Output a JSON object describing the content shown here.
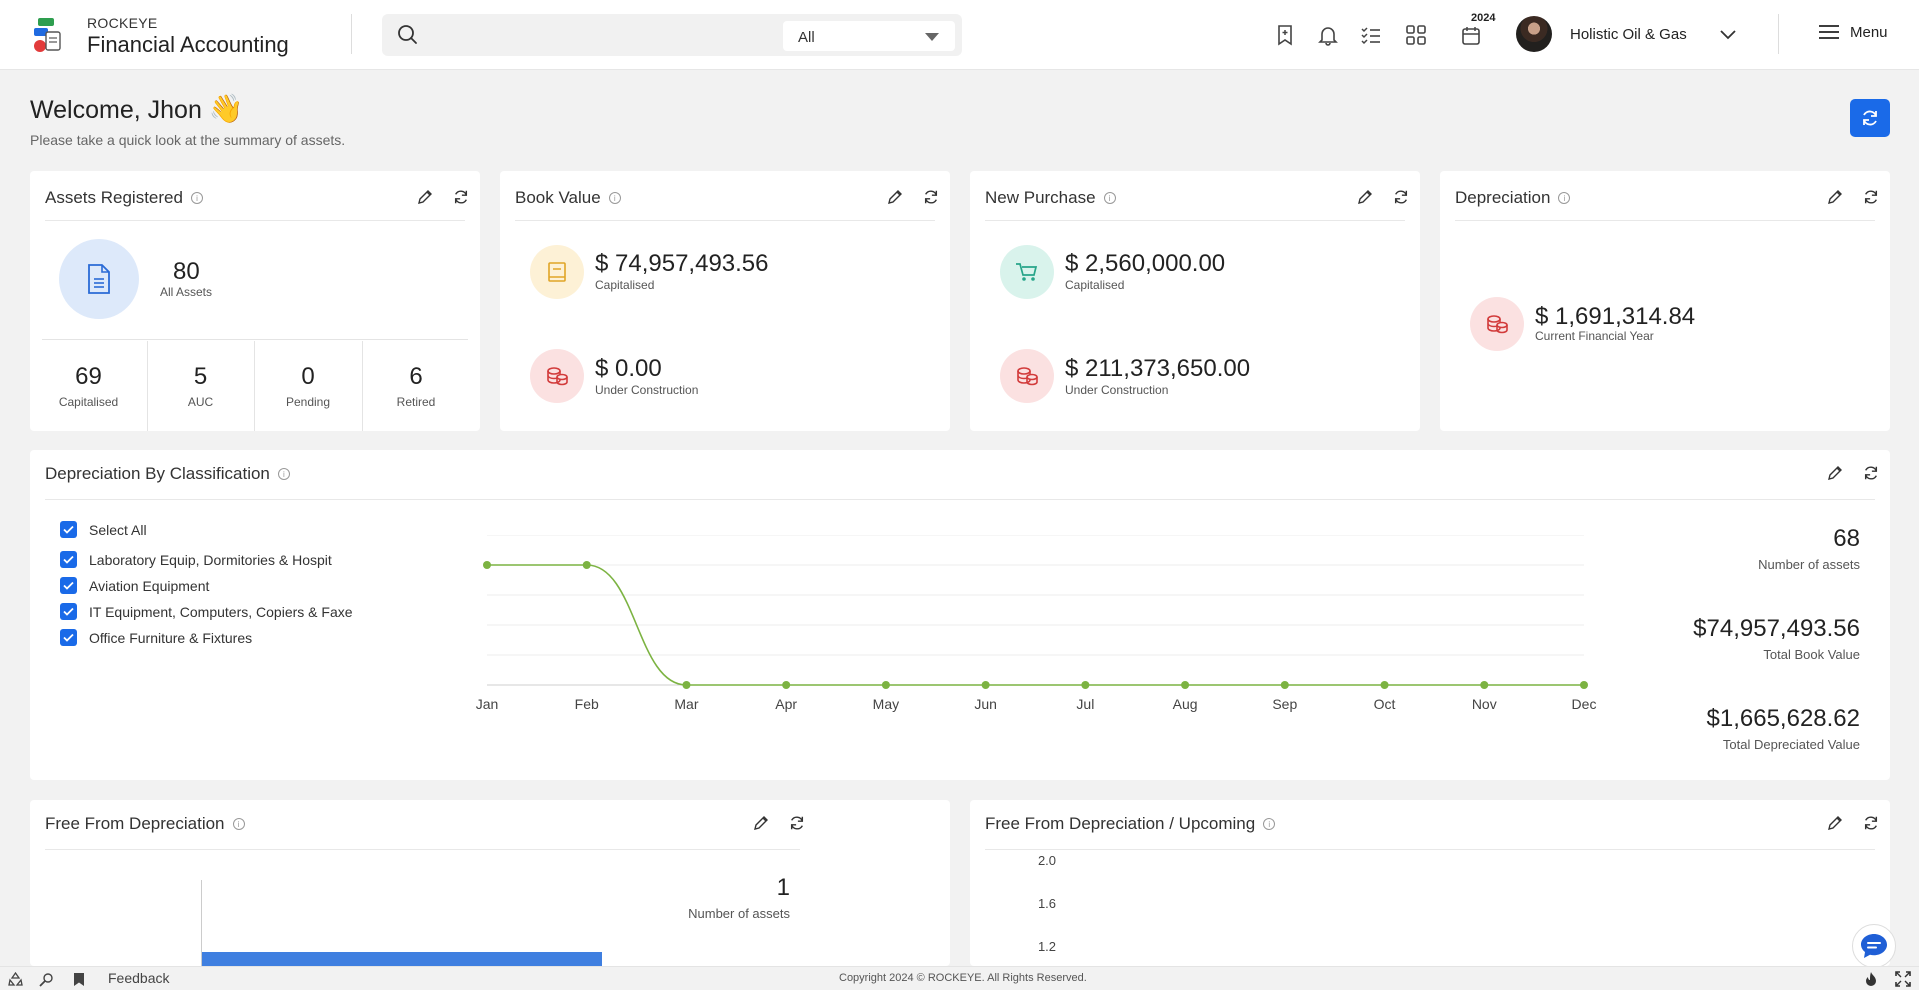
{
  "header": {
    "brand_top": "ROCKEYE",
    "brand_main": "Financial Accounting",
    "search_placeholder": "",
    "search_filter": "All",
    "year_badge": "2024",
    "company": "Holistic Oil & Gas",
    "menu_label": "Menu"
  },
  "welcome": {
    "greeting": "Welcome, ",
    "name": "Jhon",
    "emoji": "👋",
    "subtitle": "Please take a quick look at the summary of assets."
  },
  "assets_registered": {
    "title": "Assets Registered",
    "total": "80",
    "total_label": "All Assets",
    "stats": [
      {
        "value": "69",
        "label": "Capitalised"
      },
      {
        "value": "5",
        "label": "AUC"
      },
      {
        "value": "0",
        "label": "Pending"
      },
      {
        "value": "6",
        "label": "Retired"
      }
    ]
  },
  "book_value": {
    "title": "Book Value",
    "capitalised": "$ 74,957,493.56",
    "capitalised_label": "Capitalised",
    "construction": "$ 0.00",
    "construction_label": "Under Construction"
  },
  "new_purchase": {
    "title": "New Purchase",
    "capitalised": "$ 2,560,000.00",
    "capitalised_label": "Capitalised",
    "construction": "$ 211,373,650.00",
    "construction_label": "Under Construction"
  },
  "depreciation": {
    "title": "Depreciation",
    "value": "$ 1,691,314.84",
    "label": "Current Financial Year"
  },
  "classification": {
    "title": "Depreciation By Classification",
    "options": [
      "Select All",
      " Laboratory Equip, Dormitories & Hospit",
      "Aviation Equipment",
      "IT Equipment, Computers, Copiers & Faxe",
      "Office Furniture & Fixtures"
    ],
    "number_of_assets": "68",
    "number_of_assets_label": "Number of assets",
    "total_book_value": "$74,957,493.56",
    "total_book_value_label": "Total Book Value",
    "total_depreciated": "$1,665,628.62",
    "total_depreciated_label": "Total Depreciated Value"
  },
  "chart_data": [
    {
      "type": "line",
      "categories": [
        "Jan",
        "Feb",
        "Mar",
        "Apr",
        "May",
        "Jun",
        "Jul",
        "Aug",
        "Sep",
        "Oct",
        "Nov",
        "Dec"
      ],
      "values": [
        0.8,
        0.8,
        0,
        0,
        0,
        0,
        0,
        0,
        0,
        0,
        0,
        0
      ],
      "ylim": [
        0,
        1
      ],
      "grid": true,
      "color": "#7cb342"
    },
    {
      "type": "bar",
      "values": [
        1
      ],
      "grid": false,
      "color": "#3f7fe0"
    },
    {
      "type": "bar",
      "yticks": [
        "2.0",
        "1.6",
        "1.2"
      ],
      "grid": false
    }
  ],
  "free_from_depreciation": {
    "title": "Free From Depreciation",
    "count": "1",
    "count_label": "Number of assets"
  },
  "free_upcoming": {
    "title": "Free From Depreciation / Upcoming"
  },
  "footer": {
    "feedback": "Feedback",
    "copyright": "Copyright 2024 © ROCKEYE. All Rights Reserved."
  }
}
